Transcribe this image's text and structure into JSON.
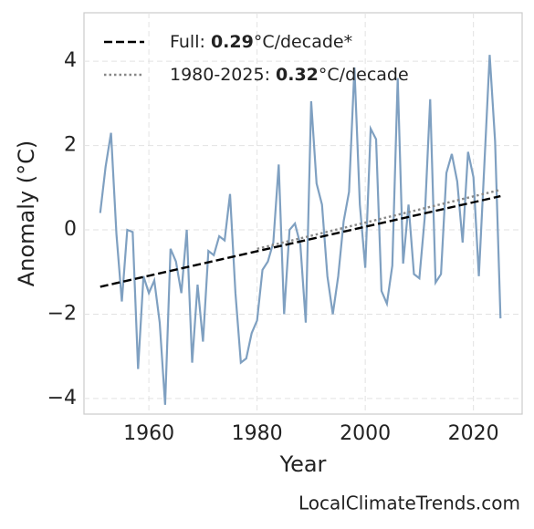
{
  "chart_data": {
    "type": "line",
    "xlabel": "Year",
    "ylabel": "Anomaly (°C)",
    "credit": "LocalClimateTrends.com",
    "xlim": [
      1948,
      2029
    ],
    "ylim": [
      -4.37,
      5.15
    ],
    "xticks": [
      1960,
      1980,
      2000,
      2020
    ],
    "yticks": [
      {
        "value": -4,
        "label": "−4"
      },
      {
        "value": -2,
        "label": "−2"
      },
      0,
      2,
      4
    ],
    "grid": true,
    "legend": "upper left",
    "series": [
      {
        "color": "#7fa0c1",
        "style": "solid",
        "x": [
          1951,
          1952,
          1953,
          1954,
          1955,
          1956,
          1957,
          1958,
          1959,
          1960,
          1961,
          1962,
          1963,
          1964,
          1965,
          1966,
          1967,
          1968,
          1969,
          1970,
          1971,
          1972,
          1973,
          1974,
          1975,
          1976,
          1977,
          1978,
          1979,
          1980,
          1981,
          1982,
          1983,
          1984,
          1985,
          1986,
          1987,
          1988,
          1989,
          1990,
          1991,
          1992,
          1993,
          1994,
          1995,
          1996,
          1997,
          1998,
          1999,
          2000,
          2001,
          2002,
          2003,
          2004,
          2005,
          2006,
          2007,
          2008,
          2009,
          2010,
          2011,
          2012,
          2013,
          2014,
          2015,
          2016,
          2017,
          2018,
          2019,
          2020,
          2021,
          2022,
          2023,
          2024,
          2025
        ],
        "values": [
          0.4,
          1.5,
          2.3,
          -0.1,
          -1.7,
          0.0,
          -0.05,
          -3.3,
          -1.1,
          -1.5,
          -1.2,
          -2.2,
          -4.15,
          -0.45,
          -0.75,
          -1.5,
          0.0,
          -3.15,
          -1.3,
          -2.65,
          -0.5,
          -0.6,
          -0.15,
          -0.25,
          0.85,
          -1.5,
          -3.15,
          -3.05,
          -2.45,
          -2.15,
          -0.95,
          -0.75,
          -0.3,
          1.55,
          -2.0,
          0.0,
          0.15,
          -0.35,
          -2.2,
          3.05,
          1.1,
          0.6,
          -1.1,
          -2.0,
          -1.1,
          0.2,
          0.9,
          3.85,
          0.6,
          -0.9,
          2.4,
          2.15,
          -1.45,
          -1.75,
          -0.85,
          3.6,
          -0.8,
          0.6,
          -1.05,
          -1.15,
          0.3,
          3.1,
          -1.25,
          -1.05,
          1.35,
          1.8,
          1.15,
          -0.3,
          1.85,
          1.25,
          -1.1,
          1.5,
          4.15,
          2.1,
          -2.1
        ]
      },
      {
        "name": [
          "Full: ",
          "0.29",
          "°C/decade*"
        ],
        "color": "#000000",
        "style": "dashed",
        "x": [
          1951,
          2025
        ],
        "values": [
          -1.35,
          0.8
        ]
      },
      {
        "name": [
          "1980-2025: ",
          "0.32",
          "°C/decade"
        ],
        "color": "#888888",
        "style": "dotted",
        "x": [
          1980,
          2025
        ],
        "values": [
          -0.45,
          0.95
        ]
      }
    ]
  }
}
